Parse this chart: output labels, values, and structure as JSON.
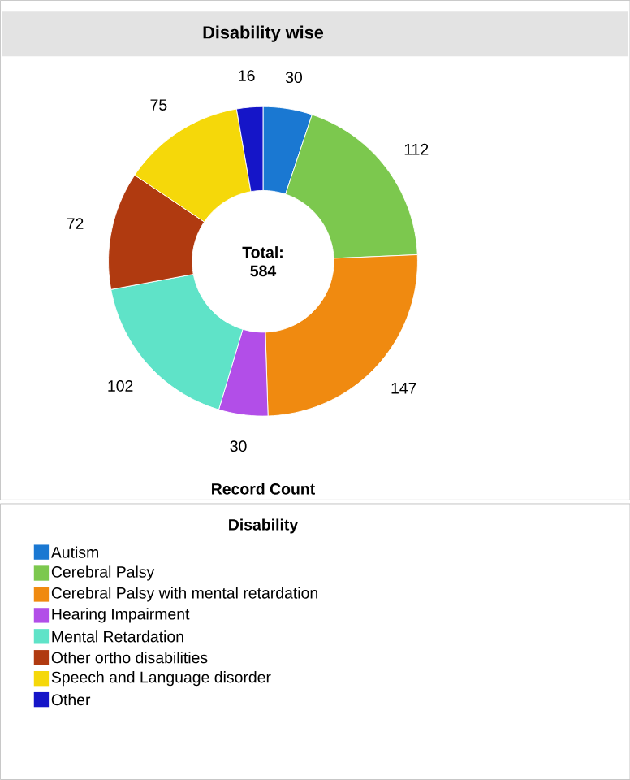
{
  "chart_data": {
    "type": "donut",
    "title": "Disability wise",
    "xlabel": "Record Count",
    "legend_title": "Disability",
    "legend": "bottom",
    "data_labels": true,
    "categories": [
      "Autism",
      "Cerebral Palsy",
      "Cerebral Palsy with mental retardation",
      "Hearing Impairment",
      "Mental Retardation",
      "Other ortho disabilities",
      "Speech and Language disorder",
      "Other"
    ],
    "values": [
      30,
      112,
      147,
      30,
      102,
      72,
      75,
      16
    ],
    "colors": [
      "#1a78d2",
      "#7cc84e",
      "#f08a10",
      "#b24ee8",
      "#5fe3c8",
      "#b03a10",
      "#f5d80a",
      "#1515c8"
    ],
    "annotations": [
      "Total: 584"
    ]
  }
}
